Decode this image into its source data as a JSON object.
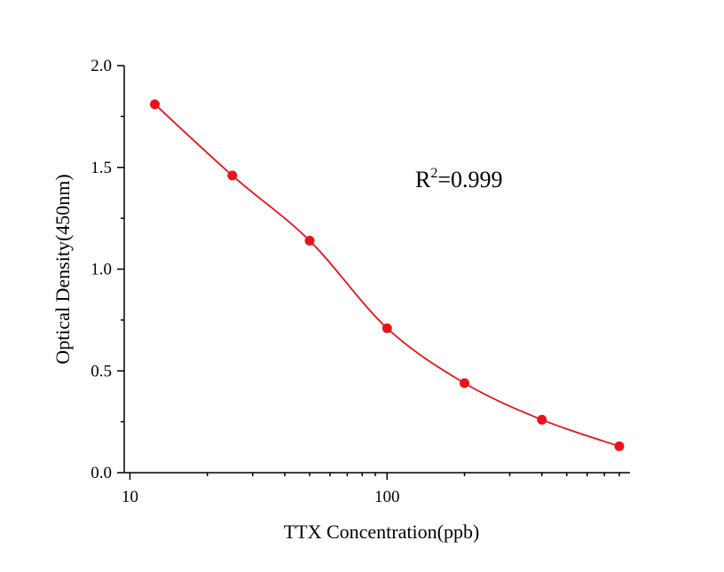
{
  "chart_data": {
    "type": "scatter",
    "xlabel": "TTX Concentration(ppb)",
    "ylabel": "Optical Density(450nm)",
    "x_scale": "log",
    "xlim": [
      9.5,
      880
    ],
    "ylim": [
      0,
      2.0
    ],
    "x_ticks": [
      {
        "value": 10,
        "label": "10"
      },
      {
        "value": 100,
        "label": "100"
      }
    ],
    "y_ticks": [
      {
        "value": 0.0,
        "label": "0.0"
      },
      {
        "value": 0.5,
        "label": "0.5"
      },
      {
        "value": 1.0,
        "label": "1.0"
      },
      {
        "value": 1.5,
        "label": "1.5"
      },
      {
        "value": 2.0,
        "label": "2.0"
      }
    ],
    "series": [
      {
        "x": [
          12.5,
          25,
          50,
          100,
          200,
          400,
          800
        ],
        "y": [
          1.81,
          1.46,
          1.14,
          0.71,
          0.44,
          0.26,
          0.13
        ],
        "color": "#e8141c",
        "fit": "4PL"
      }
    ],
    "annotation": {
      "base": "R",
      "superscript": "2",
      "text": "=0.999"
    },
    "grid": false,
    "legend": "none"
  }
}
